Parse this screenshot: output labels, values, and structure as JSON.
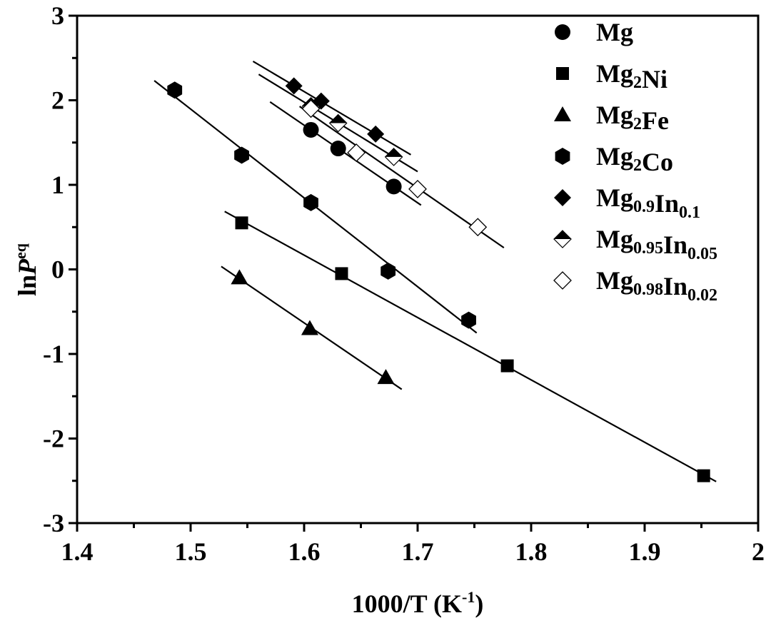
{
  "chart_data": {
    "type": "scatter",
    "title": "",
    "xlabel": {
      "text": "1000/T (K",
      "sup": "-1",
      "close": ")"
    },
    "ylabel": {
      "pre": "ln",
      "italic": "P",
      "sup": "eq"
    },
    "xlim": [
      1.4,
      2.0
    ],
    "ylim": [
      -3,
      3
    ],
    "xticks": [
      "1.4",
      "1.5",
      "1.6",
      "1.7",
      "1.8",
      "1.9",
      "2"
    ],
    "yticks": [
      "3",
      "2",
      "1",
      "0",
      "-1",
      "-2",
      "-3"
    ],
    "legend_position": "top-right",
    "grid": false,
    "series": [
      {
        "name": "Mg",
        "label": [
          {
            "t": "Mg"
          }
        ],
        "marker": "circle",
        "x": [
          1.606,
          1.63,
          1.679
        ],
        "y": [
          1.65,
          1.43,
          0.98
        ],
        "fit_range": [
          1.57,
          1.703
        ]
      },
      {
        "name": "Mg2Ni",
        "label": [
          {
            "t": "Mg"
          },
          {
            "sub": "2"
          },
          {
            "t": "Ni"
          }
        ],
        "marker": "square",
        "x": [
          1.545,
          1.633,
          1.779,
          1.952
        ],
        "y": [
          0.55,
          -0.05,
          -1.14,
          -2.44
        ],
        "fit_range": [
          1.53,
          1.963
        ]
      },
      {
        "name": "Mg2Fe",
        "label": [
          {
            "t": "Mg"
          },
          {
            "sub": "2"
          },
          {
            "t": "Fe"
          }
        ],
        "marker": "triangle",
        "x": [
          1.543,
          1.605,
          1.672
        ],
        "y": [
          -0.1,
          -0.7,
          -1.28
        ],
        "fit_range": [
          1.527,
          1.686
        ]
      },
      {
        "name": "Mg2Co",
        "label": [
          {
            "t": "Mg"
          },
          {
            "sub": "2"
          },
          {
            "t": "Co"
          }
        ],
        "marker": "hexagon",
        "x": [
          1.486,
          1.545,
          1.606,
          1.674,
          1.745
        ],
        "y": [
          2.12,
          1.35,
          0.79,
          -0.02,
          -0.6
        ],
        "fit_range": [
          1.468,
          1.752
        ]
      },
      {
        "name": "Mg0.9In0.1",
        "label": [
          {
            "t": "Mg"
          },
          {
            "sub": "0.9"
          },
          {
            "t": "In"
          },
          {
            "sub": "0.1"
          }
        ],
        "marker": "diamond",
        "x": [
          1.591,
          1.615,
          1.663
        ],
        "y": [
          2.17,
          1.99,
          1.6
        ],
        "fit_range": [
          1.555,
          1.694
        ]
      },
      {
        "name": "Mg0.95In0.05",
        "label": [
          {
            "t": "Mg"
          },
          {
            "sub": "0.95"
          },
          {
            "t": "In"
          },
          {
            "sub": "0.05"
          }
        ],
        "marker": "half-diamond",
        "x": [
          1.606,
          1.63,
          1.679
        ],
        "y": [
          1.93,
          1.73,
          1.33
        ],
        "fit_range": [
          1.56,
          1.7
        ]
      },
      {
        "name": "Mg0.98In0.02",
        "label": [
          {
            "t": "Mg"
          },
          {
            "sub": "0.98"
          },
          {
            "t": "In"
          },
          {
            "sub": "0.02"
          }
        ],
        "marker": "open-diamond",
        "x": [
          1.606,
          1.646,
          1.7,
          1.753
        ],
        "y": [
          1.9,
          1.38,
          0.95,
          0.5
        ],
        "fit_range": [
          1.596,
          1.776
        ]
      }
    ]
  }
}
